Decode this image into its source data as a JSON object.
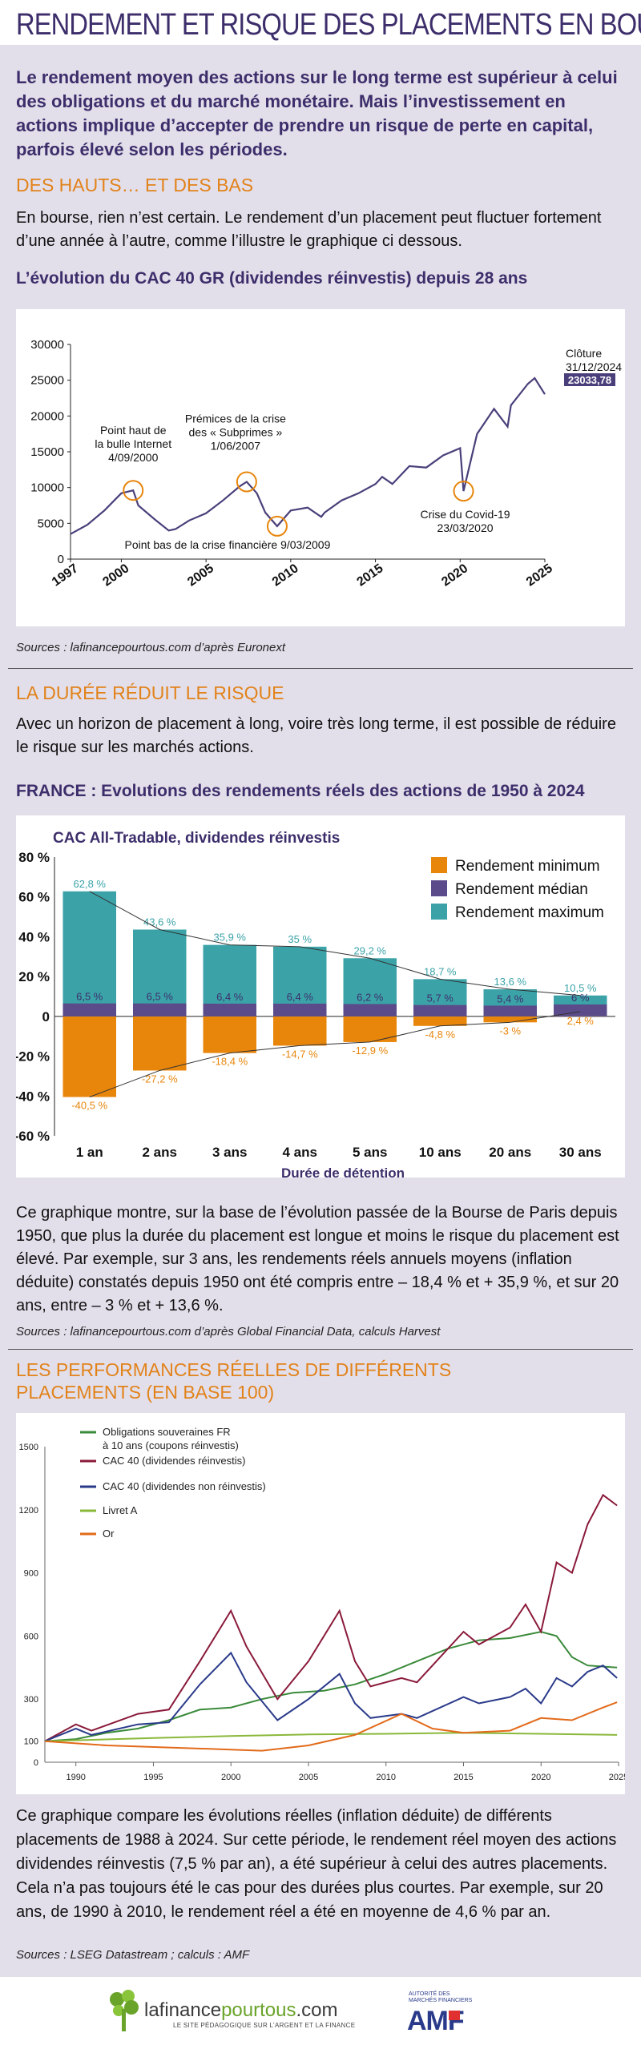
{
  "header": {
    "title": "RENDEMENT ET RISQUE DES PLACEMENTS EN BOURSE"
  },
  "intro": "Le rendement moyen des actions sur le long terme est supérieur à celui des obligations et du marché monétaire. Mais l’investissement en actions implique d’accepter de prendre un risque de perte en capital, parfois élevé selon les périodes.",
  "section1": {
    "title": "DES HAUTS… ET DES BAS",
    "text": "En bourse, rien n’est certain. Le rendement d’un placement peut fluctuer fortement d’une année à l’autre, comme l’illustre le graphique ci dessous.",
    "chart_title": "L’évolution du CAC 40 GR (dividendes réinvestis) depuis 28 ans",
    "source": "Sources : lafinancepourtous.com d’après Euronext"
  },
  "section2": {
    "title": "LA DURÉE RÉDUIT LE RISQUE",
    "text": "Avec un horizon de placement à long, voire très long terme, il est possible de réduire le risque sur les marchés actions.",
    "chart_title": "FRANCE : Evolutions des rendements réels des actions de 1950 à 2024",
    "chart_subtitle": "CAC All-Tradable, dividendes réinvestis",
    "explanation": "Ce graphique montre, sur la base de l’évolution passée de la Bourse de Paris depuis 1950, que plus la durée du placement est longue et moins le risque du placement est élevé. Par exemple, sur 3 ans, les rendements réels annuels moyens (inflation déduite) constatés depuis 1950 ont été compris entre – 18,4 % et + 35,9 %, et sur 20 ans, entre – 3 % et + 13,6 %.",
    "source": "Sources : lafinancepourtous.com d’après Global Financial Data, calculs Harvest"
  },
  "section3": {
    "title": "LES PERFORMANCES RÉELLES DE DIFFÉRENTS PLACEMENTS (EN BASE 100)",
    "explanation": "Ce graphique compare les évolutions réelles (inflation déduite) de différents placements de 1988 à 2024. Sur cette période, le rendement réel moyen des actions dividendes réinvestis (7,5 % par an), a été supérieur à celui des autres placements. Cela n’a pas toujours été le cas pour des durées plus courtes. Par exemple, sur 20 ans, de 1990 à 2010, le rendement réel a été en moyenne de 4,6 % par an.",
    "source": "Sources : LSEG Datastream ; calculs : AMF"
  },
  "footer": {
    "logo_text_a": "lafinance",
    "logo_text_b": "pourtous",
    "logo_text_c": ".com",
    "logo_sub": "LE SITE PÉDAGOGIQUE SUR L’ARGENT ET LA FINANCE",
    "amf_sub": "AUTORITÉ DES MARCHÉS FINANCIERS",
    "amf": "AMF"
  },
  "chart_data": [
    {
      "type": "line",
      "title": "L’évolution du CAC 40 GR (dividendes réinvestis) depuis 28 ans",
      "ylim": [
        0,
        30000
      ],
      "yticks": [
        0,
        5000,
        10000,
        15000,
        20000,
        25000,
        30000
      ],
      "xticks": [
        "1997",
        "2000",
        "2005",
        "2010",
        "2015",
        "2020",
        "2025"
      ],
      "xlim": [
        1997,
        2025
      ],
      "series": [
        {
          "x": [
            1997,
            1998,
            1999,
            2000,
            2000.7,
            2001,
            2002,
            2002.8,
            2003.2,
            2004,
            2005,
            2006,
            2007,
            2007.4,
            2008,
            2008.5,
            2009.2,
            2010,
            2011,
            2011.8,
            2012,
            2013,
            2014,
            2015,
            2015.4,
            2016,
            2017,
            2018,
            2019,
            2020,
            2020.2,
            2021,
            2022,
            2022.8,
            2023,
            2024,
            2024.4,
            2025
          ],
          "y": [
            3500,
            4800,
            6800,
            9200,
            9600,
            7500,
            5500,
            4000,
            4200,
            5400,
            6400,
            8200,
            10200,
            10800,
            9200,
            6500,
            4600,
            6800,
            7200,
            5900,
            6500,
            8200,
            9200,
            10500,
            11500,
            10500,
            13000,
            12800,
            14500,
            15500,
            9500,
            17500,
            21000,
            18500,
            21500,
            24500,
            25300,
            23033.78
          ]
        }
      ],
      "annotations": [
        {
          "text": [
            "Point haut de",
            "la bulle Internet",
            "4/09/2000"
          ],
          "x": 2000.7,
          "y": 9600
        },
        {
          "text": [
            "Prémices de la crise",
            "des « Subprimes »",
            "1/06/2007"
          ],
          "x": 2007.4,
          "y": 10800
        },
        {
          "text": [
            "Point bas de la crise financière 9/03/2009"
          ],
          "x": 2009.2,
          "y": 4600
        },
        {
          "text": [
            "Crise du Covid-19",
            "23/03/2020"
          ],
          "x": 2020.2,
          "y": 9500
        },
        {
          "text": [
            "Clôture",
            "31/12/2024"
          ],
          "value": "23033,78"
        }
      ]
    },
    {
      "type": "bar",
      "title": "FRANCE : Evolutions des rendements réels des actions de 1950 à 2024",
      "subtitle": "CAC All-Tradable, dividendes réinvestis",
      "xlabel": "Durée de détention",
      "categories": [
        "1 an",
        "2 ans",
        "3 ans",
        "4 ans",
        "5 ans",
        "10 ans",
        "20 ans",
        "30 ans"
      ],
      "ylim": [
        -60,
        80
      ],
      "yticks": [
        "-60 %",
        "-40 %",
        "-20 %",
        "0",
        "20 %",
        "40 %",
        "60 %",
        "80 %"
      ],
      "yvalues": [
        -60,
        -40,
        -20,
        0,
        20,
        40,
        60,
        80
      ],
      "series": [
        {
          "name": "Rendement minimum",
          "color": "#e8860c",
          "values": [
            -40.5,
            -27.2,
            -18.4,
            -14.7,
            -12.9,
            -4.8,
            -3,
            2.4
          ],
          "labels": [
            "-40,5 %",
            "-27,2 %",
            "-18,4 %",
            "-14,7 %",
            "-12,9 %",
            "-4,8 %",
            "-3 %",
            "2,4 %"
          ]
        },
        {
          "name": "Rendement médian",
          "color": "#5b4b8a",
          "values": [
            6.5,
            6.5,
            6.4,
            6.4,
            6.2,
            5.7,
            5.4,
            6
          ],
          "labels": [
            "6,5 %",
            "6,5 %",
            "6,4 %",
            "6,4 %",
            "6,2 %",
            "5,7 %",
            "5,4 %",
            "6 %"
          ]
        },
        {
          "name": "Rendement maximum",
          "color": "#3ba3a8",
          "values": [
            62.8,
            43.6,
            35.9,
            35,
            29.2,
            18.7,
            13.6,
            10.5
          ],
          "labels": [
            "62,8 %",
            "43,6 %",
            "35,9 %",
            "35 %",
            "29,2 %",
            "18,7 %",
            "13,6 %",
            "10,5 %"
          ]
        }
      ]
    },
    {
      "type": "line",
      "title": "LES PERFORMANCES RÉELLES DE DIFFÉRENTS PLACEMENTS (EN BASE 100)",
      "ylim": [
        0,
        1500
      ],
      "yticks": [
        0,
        100,
        300,
        600,
        900,
        1200,
        1500
      ],
      "xticks": [
        "1990",
        "1995",
        "2000",
        "2005",
        "2010",
        "2015",
        "2020",
        "2025"
      ],
      "xlim": [
        1988,
        2025
      ],
      "series": [
        {
          "name": "Obligations souveraines FR à 10 ans (coupons réinvestis)",
          "color": "#3a8a3a",
          "x": [
            1988,
            1990,
            1992,
            1994,
            1996,
            1998,
            2000,
            2002,
            2004,
            2006,
            2008,
            2010,
            2012,
            2014,
            2016,
            2018,
            2020,
            2021,
            2022,
            2023,
            2024.9
          ],
          "y": [
            100,
            110,
            140,
            160,
            200,
            250,
            260,
            300,
            330,
            340,
            370,
            420,
            480,
            540,
            580,
            590,
            620,
            600,
            500,
            460,
            450
          ]
        },
        {
          "name": "CAC 40 (dividendes réinvestis)",
          "color": "#8a1a3a",
          "x": [
            1988,
            1990,
            1991,
            1994,
            1996,
            1998,
            2000,
            2001,
            2003,
            2005,
            2007,
            2008,
            2009,
            2011,
            2012,
            2015,
            2016,
            2018,
            2019,
            2020,
            2021,
            2022,
            2023,
            2024,
            2024.9
          ],
          "y": [
            100,
            180,
            150,
            230,
            250,
            480,
            720,
            550,
            300,
            480,
            720,
            480,
            360,
            400,
            380,
            620,
            560,
            640,
            750,
            620,
            950,
            900,
            1130,
            1270,
            1220
          ]
        },
        {
          "name": "CAC 40 (dividendes non réinvestis)",
          "color": "#2a3a8a",
          "x": [
            1988,
            1990,
            1991,
            1994,
            1996,
            1998,
            2000,
            2001,
            2003,
            2005,
            2007,
            2008,
            2009,
            2011,
            2012,
            2015,
            2016,
            2018,
            2019,
            2020,
            2021,
            2022,
            2023,
            2024,
            2024.9
          ],
          "y": [
            100,
            160,
            130,
            180,
            190,
            370,
            520,
            380,
            200,
            300,
            420,
            280,
            210,
            230,
            210,
            310,
            280,
            310,
            350,
            280,
            400,
            360,
            430,
            460,
            400
          ]
        },
        {
          "name": "Livret A",
          "color": "#8ab83a",
          "x": [
            1988,
            1995,
            2000,
            2005,
            2010,
            2015,
            2020,
            2024.9
          ],
          "y": [
            100,
            115,
            125,
            132,
            135,
            140,
            135,
            130
          ]
        },
        {
          "name": "Or",
          "color": "#e26a1a",
          "x": [
            1988,
            1992,
            1996,
            2000,
            2002,
            2005,
            2008,
            2011,
            2013,
            2015,
            2018,
            2020,
            2022,
            2024,
            2024.9
          ],
          "y": [
            100,
            80,
            70,
            60,
            55,
            80,
            130,
            230,
            160,
            140,
            150,
            210,
            200,
            260,
            285
          ]
        }
      ]
    }
  ]
}
